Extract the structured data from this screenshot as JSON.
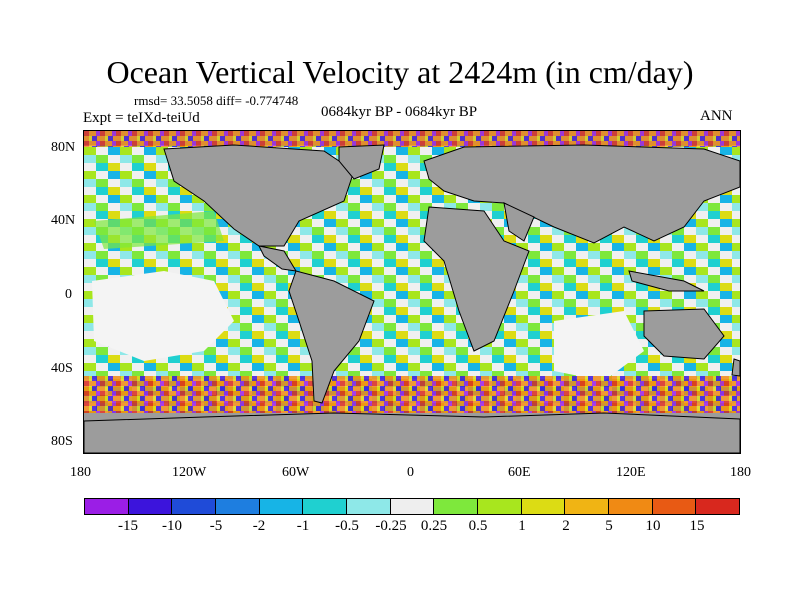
{
  "title": "Ocean Vertical Velocity at 2424m (in cm/day)",
  "stats": "rmsd= 33.5058 diff= -0.774748",
  "experiment": "Expt = teIXd-teiUd",
  "period": "0684kyr BP - 0684kyr BP",
  "season": "ANN",
  "lat_labels": [
    "80N",
    "40N",
    "0",
    "40S",
    "80S"
  ],
  "lon_labels": [
    "180",
    "120W",
    "60W",
    "0",
    "60E",
    "120E",
    "180"
  ],
  "colorbar": {
    "labels": [
      "-15",
      "-10",
      "-5",
      "-2",
      "-1",
      "-0.5",
      "-0.25",
      "0.25",
      "0.5",
      "1",
      "2",
      "5",
      "10",
      "15"
    ],
    "colors": [
      "#9b1ee6",
      "#3c14dc",
      "#1f4bd8",
      "#1e7ee0",
      "#17b4e6",
      "#1fd0d0",
      "#8ee8e8",
      "#eeeeee",
      "#7ee83c",
      "#a8e61e",
      "#dcdc14",
      "#f0b414",
      "#f08a14",
      "#e85a14",
      "#d8281e"
    ]
  },
  "map": {
    "land_color": "#9c9c9c"
  }
}
